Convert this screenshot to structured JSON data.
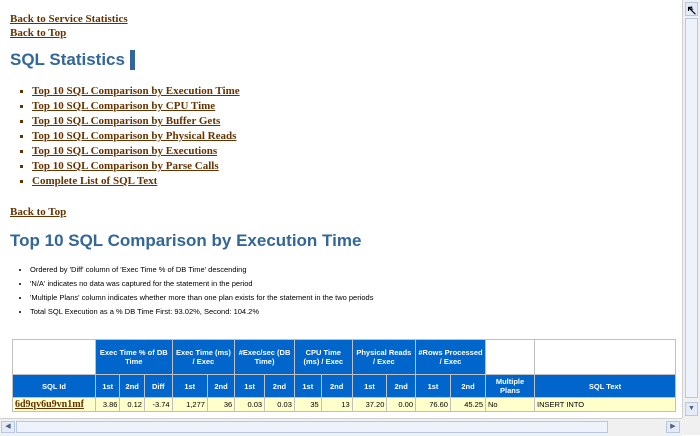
{
  "nav": {
    "back_to_service": "Back to Service Statistics",
    "back_to_top_1": "Back to Top",
    "back_to_top_2": "Back to Top"
  },
  "sql_statistics": {
    "title": "SQL Statistics",
    "toc": [
      "Top 10 SQL Comparison by Execution Time",
      "Top 10 SQL Comparison by CPU Time",
      "Top 10 SQL Comparison by Buffer Gets",
      "Top 10 SQL Comparison by Physical Reads",
      "Top 10 SQL Comparison by Executions",
      "Top 10 SQL Comparison by Parse Calls",
      "Complete List of SQL Text"
    ]
  },
  "exec_section": {
    "title": "Top 10 SQL Comparison by Execution Time",
    "notes": [
      "Ordered by 'Diff' column of 'Exec Time % of DB Time' descending",
      "'N/A' indicates no data was captured for the statement in the period",
      "'Multiple Plans' column indicates whether more than one plan exists for the statement in the two periods",
      "Total SQL Execution as a % DB Time First: 93.02%, Second: 104.2%"
    ]
  },
  "table": {
    "groups": {
      "exec_pct": "Exec Time % of DB Time",
      "exec_ms": "Exec Time (ms) / Exec",
      "exec_sec": "#Exec/sec (DB Time)",
      "cpu": "CPU Time (ms) / Exec",
      "phys": "Physical Reads / Exec",
      "rows": "#Rows Processed / Exec"
    },
    "sub": {
      "sql_id": "SQL Id",
      "first": "1st",
      "second": "2nd",
      "diff": "Diff",
      "multiple_plans": "Multiple Plans",
      "sql_text": "SQL Text"
    },
    "row": {
      "sql_id": "6d9qv6u9vn1mf",
      "exec_pct_1": "3.86",
      "exec_pct_2": "0.12",
      "exec_pct_diff": "-3.74",
      "exec_ms_1": "1,277",
      "exec_ms_2": "36",
      "exec_sec_1": "0.03",
      "exec_sec_2": "0.03",
      "cpu_1": "35",
      "cpu_2": "13",
      "phys_1": "37.20",
      "phys_2": "0.00",
      "rows_1": "76.60",
      "rows_2": "45.25",
      "multiple_plans": "No",
      "sql_text": "INSERT INTO"
    }
  },
  "colors": {
    "link": "#663300",
    "heading": "#336699",
    "header_bg": "#0066cc",
    "row_bg": "#ffffcc"
  }
}
